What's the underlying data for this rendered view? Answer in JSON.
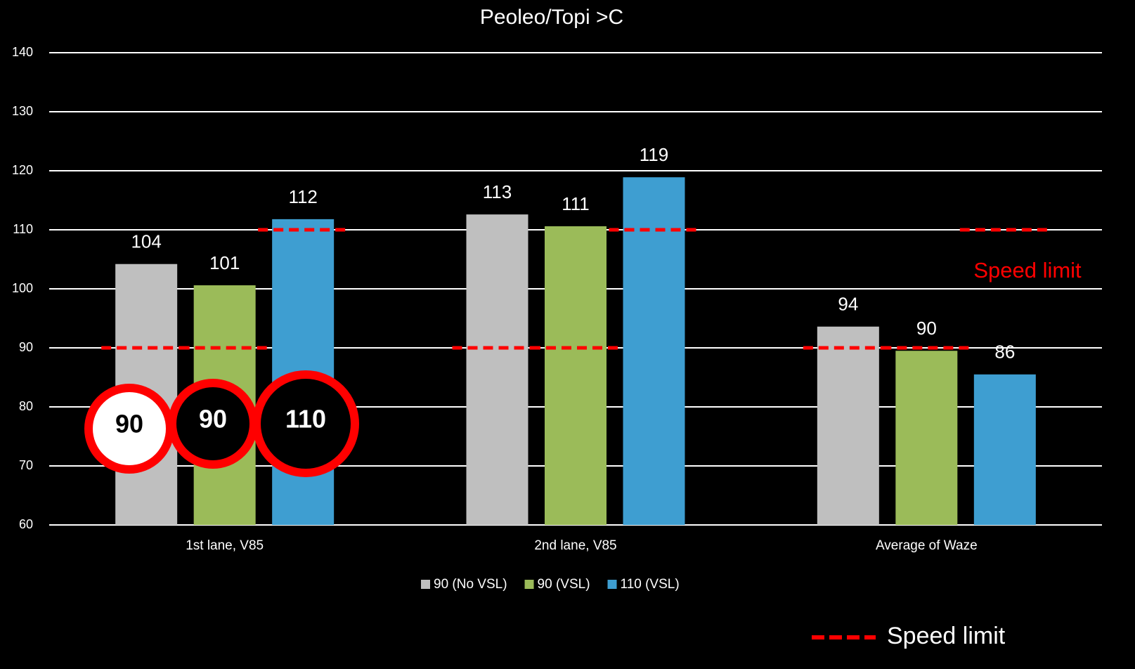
{
  "chart_data": {
    "type": "bar",
    "title": "Peoleo/Topi >C",
    "categories": [
      "1st lane, V85",
      "2nd lane, V85",
      "Average of Waze"
    ],
    "series": [
      {
        "name": "90 (No VSL)",
        "color": "#bfbfbf",
        "values": [
          104.2,
          112.6,
          93.6
        ],
        "value_labels": [
          "104",
          "113",
          "94"
        ]
      },
      {
        "name": "90 (VSL)",
        "color": "#9bbb59",
        "values": [
          100.6,
          110.6,
          89.5
        ],
        "value_labels": [
          "101",
          "111",
          "90"
        ]
      },
      {
        "name": "110 (VSL)",
        "color": "#3e9ed1",
        "values": [
          111.8,
          118.9,
          85.5
        ],
        "value_labels": [
          "112",
          "119",
          "86"
        ]
      }
    ],
    "speed_limit": {
      "name": "Speed limit",
      "color": "#ff0000",
      "annotation": "Speed limit",
      "values": [
        [
          90,
          90,
          110
        ],
        [
          90,
          90,
          110
        ],
        [
          90,
          90,
          110
        ]
      ]
    },
    "signs": [
      {
        "value": 90,
        "fill": "#ffffff",
        "text_color": "#000000"
      },
      {
        "value": 90,
        "fill": "#000000",
        "text_color": "#ffffff"
      },
      {
        "value": 110,
        "fill": "#000000",
        "text_color": "#ffffff"
      }
    ],
    "ylim": [
      60,
      140
    ],
    "yticks": [
      60,
      70,
      80,
      90,
      100,
      110,
      120,
      130,
      140
    ],
    "grid": true
  }
}
